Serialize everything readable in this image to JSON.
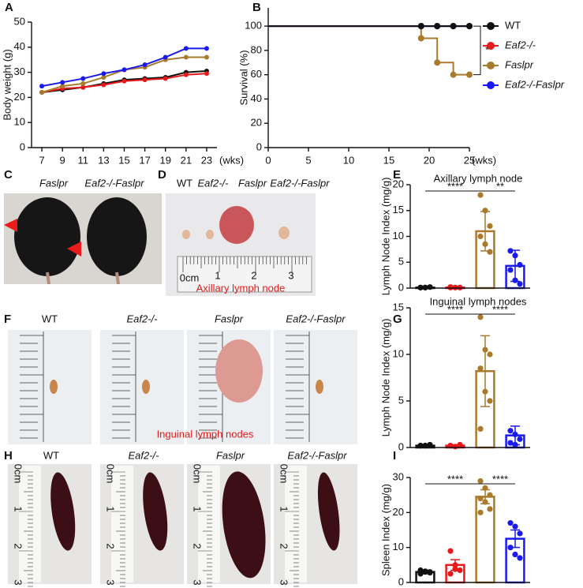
{
  "panel_labels": [
    "A",
    "B",
    "C",
    "D",
    "E",
    "F",
    "G",
    "H",
    "I"
  ],
  "chart_data": [
    {
      "type": "line",
      "ylabel": "Body weight (g)",
      "xlabel": "(wks)",
      "x": [
        7,
        9,
        11,
        13,
        15,
        17,
        19,
        21,
        23
      ],
      "xlim": [
        6,
        24
      ],
      "xticks": [
        7,
        9,
        11,
        13,
        15,
        17,
        19,
        21,
        23
      ],
      "ylim": [
        0,
        50
      ],
      "yticks": [
        0,
        10,
        20,
        30,
        40,
        50
      ],
      "series": [
        {
          "name": "WT",
          "color": "#111111",
          "values": [
            22,
            23,
            24,
            25.5,
            27,
            27.5,
            28,
            30,
            30.5
          ]
        },
        {
          "name": "Eaf2-/-",
          "color": "#e8191b",
          "values": [
            22,
            23.5,
            24,
            25,
            26.5,
            27,
            27.5,
            29,
            29.5
          ]
        },
        {
          "name": "Faslpr",
          "color": "#a97a2c",
          "values": [
            22,
            24.5,
            25.5,
            28,
            31,
            32,
            35,
            36,
            36
          ]
        },
        {
          "name": "Eaf2-/-Faslpr",
          "color": "#1a1aee",
          "values": [
            24.5,
            26,
            27.5,
            29.5,
            31,
            33,
            36,
            39.5,
            39.5
          ]
        }
      ]
    },
    {
      "type": "step",
      "ylabel": "Survival (%)",
      "xlabel": "(wks)",
      "annotation": "**",
      "x": [
        0,
        19,
        21,
        23,
        25
      ],
      "xlim": [
        0,
        25
      ],
      "xticks": [
        0,
        5,
        10,
        15,
        20,
        25
      ],
      "ylim": [
        0,
        115
      ],
      "yticks": [
        0,
        20,
        40,
        60,
        80,
        100
      ],
      "series": [
        {
          "name": "WT",
          "color": "#111111",
          "values": [
            100,
            100,
            100,
            100,
            100
          ]
        },
        {
          "name": "Eaf2-/-",
          "color": "#e8191b",
          "values": [
            100,
            100,
            100,
            100,
            100
          ]
        },
        {
          "name": "Faslpr",
          "color": "#a97a2c",
          "values": [
            100,
            90,
            70,
            60,
            60
          ]
        },
        {
          "name": "Eaf2-/-Faslpr",
          "color": "#1a1aee",
          "values": [
            100,
            100,
            100,
            100,
            100
          ]
        }
      ]
    },
    {
      "type": "bar",
      "title": "Axillary lymph node",
      "ylabel": "Lymph Node Index (mg/g)",
      "categories": [
        null,
        null,
        null,
        null
      ],
      "colors": [
        "#111111",
        "#e8191b",
        "#a97a2c",
        "#1a1aee"
      ],
      "values": [
        0.1,
        0.1,
        11,
        4.3
      ],
      "errors": [
        0.1,
        0.1,
        3.8,
        3
      ],
      "points": [
        [
          0.1,
          0.1,
          0.2,
          0.1,
          0.1
        ],
        [
          0.1,
          0.1,
          0.1,
          0.2
        ],
        [
          18,
          15,
          12,
          10,
          8.5,
          7
        ],
        [
          7.2,
          6.3,
          4.5,
          3.5,
          1.5,
          0.8
        ]
      ],
      "annotations": [
        "****",
        "**"
      ],
      "ylim": [
        0,
        20
      ],
      "yticks": [
        0,
        5,
        10,
        15,
        20
      ]
    },
    {
      "type": "bar",
      "title": "Inguinal lymph nodes",
      "ylabel": "Lymph Node Index (mg/g)",
      "categories": [
        null,
        null,
        null,
        null
      ],
      "colors": [
        "#111111",
        "#e8191b",
        "#a97a2c",
        "#1a1aee"
      ],
      "values": [
        0.2,
        0.2,
        8.2,
        1.3
      ],
      "errors": [
        0.1,
        0.1,
        3.8,
        1
      ],
      "points": [
        [
          0.2,
          0.2,
          0.3,
          0.2,
          0.2
        ],
        [
          0.2,
          0.1,
          0.3,
          0.2
        ],
        [
          14,
          10.5,
          10,
          8.5,
          6,
          5,
          2
        ],
        [
          1.8,
          1.4,
          0.9,
          0.5,
          0.3
        ]
      ],
      "annotations": [
        "****",
        "****"
      ],
      "ylim": [
        0,
        15
      ],
      "yticks": [
        0,
        5,
        10,
        15
      ]
    },
    {
      "type": "bar",
      "ylabel": "Spleen Index (mg/g)",
      "categories": [
        null,
        null,
        null,
        null
      ],
      "colors": [
        "#111111",
        "#e8191b",
        "#a97a2c",
        "#1a1aee"
      ],
      "values": [
        3,
        5,
        24.5,
        12.5
      ],
      "errors": [
        0.5,
        1.5,
        2,
        2.5
      ],
      "points": [
        [
          3.5,
          3,
          2.8,
          2.5,
          3.2,
          3
        ],
        [
          9,
          5,
          3.5,
          2.5,
          3.8
        ],
        [
          29,
          27,
          25,
          24,
          23,
          21,
          20
        ],
        [
          17,
          16,
          14,
          10,
          8,
          7
        ]
      ],
      "annotations": [
        "****",
        "****"
      ],
      "ylim": [
        0,
        30
      ],
      "yticks": [
        0,
        10,
        20,
        30
      ]
    }
  ],
  "photos": {
    "C": {
      "labels": [
        "Faslpr",
        "Eaf2-/-Faslpr"
      ]
    },
    "D": {
      "labels": [
        "WT",
        "Eaf2-/-",
        "Faslpr",
        "Eaf2-/-Faslpr"
      ],
      "scale": [
        "0cm",
        "1",
        "2",
        "3"
      ],
      "caption": "Axillary lymph node"
    },
    "F": {
      "labels": [
        "WT",
        "Eaf2-/-",
        "Faslpr",
        "Eaf2-/-Faslpr"
      ],
      "caption": "Inguinal lymph nodes"
    },
    "H": {
      "labels": [
        "WT",
        "Eaf2-/-",
        "Faslpr",
        "Eaf2-/-Faslpr"
      ],
      "scale": [
        "0cm",
        "1",
        "2",
        "3"
      ]
    }
  }
}
